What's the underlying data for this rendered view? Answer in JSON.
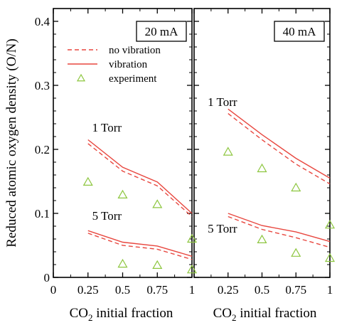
{
  "chart_data": {
    "type": "line",
    "ylabel": "Reduced atomic oxygen density (O/N)",
    "ylim": [
      0,
      0.42
    ],
    "yticks": [
      "0",
      "0.1",
      "0.2",
      "0.3",
      "0.4"
    ],
    "xticks": [
      "0",
      "0.25",
      "0.5",
      "0.75",
      "1"
    ],
    "xlabel_parts": {
      "prefix": "CO",
      "subscript": "2",
      "suffix": " initial fraction"
    },
    "colors": {
      "model": "#e8473f",
      "experiment": "#8dc63f",
      "frame": "#000000"
    },
    "legend": {
      "placement": "top-left",
      "entries": [
        {
          "label": "no vibration",
          "style": "dashed"
        },
        {
          "label": "vibration",
          "style": "solid"
        },
        {
          "label": "experiment",
          "style": "triangle-marker"
        }
      ]
    },
    "panels": [
      {
        "label": "20 mA",
        "xlim": [
          0,
          1
        ],
        "annotations": [
          {
            "text": "1 Torr",
            "x": 0.28,
            "y": 0.228
          },
          {
            "text": "5 Torr",
            "x": 0.28,
            "y": 0.09
          }
        ],
        "series": [
          {
            "group": "1 Torr",
            "style": "solid",
            "x": [
              0.25,
              0.5,
              0.75,
              1.0
            ],
            "y": [
              0.215,
              0.172,
              0.149,
              0.1
            ]
          },
          {
            "group": "1 Torr",
            "style": "dashed",
            "x": [
              0.25,
              0.5,
              0.75,
              1.0
            ],
            "y": [
              0.209,
              0.166,
              0.143,
              0.095
            ]
          },
          {
            "group": "5 Torr",
            "style": "solid",
            "x": [
              0.25,
              0.5,
              0.75,
              1.0
            ],
            "y": [
              0.073,
              0.055,
              0.049,
              0.033
            ]
          },
          {
            "group": "5 Torr",
            "style": "dashed",
            "x": [
              0.25,
              0.5,
              0.75,
              1.0
            ],
            "y": [
              0.069,
              0.05,
              0.044,
              0.028
            ]
          }
        ],
        "experiment": {
          "1 Torr": {
            "x": [
              0.25,
              0.5,
              0.75,
              1.0
            ],
            "y": [
              0.149,
              0.129,
              0.114,
              0.06
            ]
          },
          "5 Torr": {
            "x": [
              0.5,
              0.75,
              1.0
            ],
            "y": [
              0.021,
              0.019,
              0.012
            ]
          }
        }
      },
      {
        "label": "40 mA",
        "xlim": [
          0,
          1
        ],
        "annotations": [
          {
            "text": "1 Torr",
            "x": 0.1,
            "y": 0.268
          },
          {
            "text": "5 Torr",
            "x": 0.1,
            "y": 0.07
          }
        ],
        "series": [
          {
            "group": "1 Torr",
            "style": "solid",
            "x": [
              0.25,
              0.5,
              0.75,
              1.0
            ],
            "y": [
              0.263,
              0.223,
              0.186,
              0.155
            ]
          },
          {
            "group": "1 Torr",
            "style": "dashed",
            "x": [
              0.25,
              0.5,
              0.75,
              1.0
            ],
            "y": [
              0.256,
              0.215,
              0.177,
              0.146
            ]
          },
          {
            "group": "5 Torr",
            "style": "solid",
            "x": [
              0.25,
              0.5,
              0.75,
              1.0
            ],
            "y": [
              0.1,
              0.081,
              0.071,
              0.056
            ]
          },
          {
            "group": "5 Torr",
            "style": "dashed",
            "x": [
              0.25,
              0.5,
              0.75,
              1.0
            ],
            "y": [
              0.095,
              0.075,
              0.062,
              0.047
            ]
          }
        ],
        "experiment": {
          "1 Torr": {
            "x": [
              0.25,
              0.5,
              0.75
            ],
            "y": [
              0.196,
              0.17,
              0.14
            ]
          },
          "5 Torr": {
            "x": [
              0.5,
              0.75,
              1.0,
              1.0
            ],
            "y": [
              0.059,
              0.038,
              0.082,
              0.03
            ]
          }
        }
      }
    ]
  }
}
